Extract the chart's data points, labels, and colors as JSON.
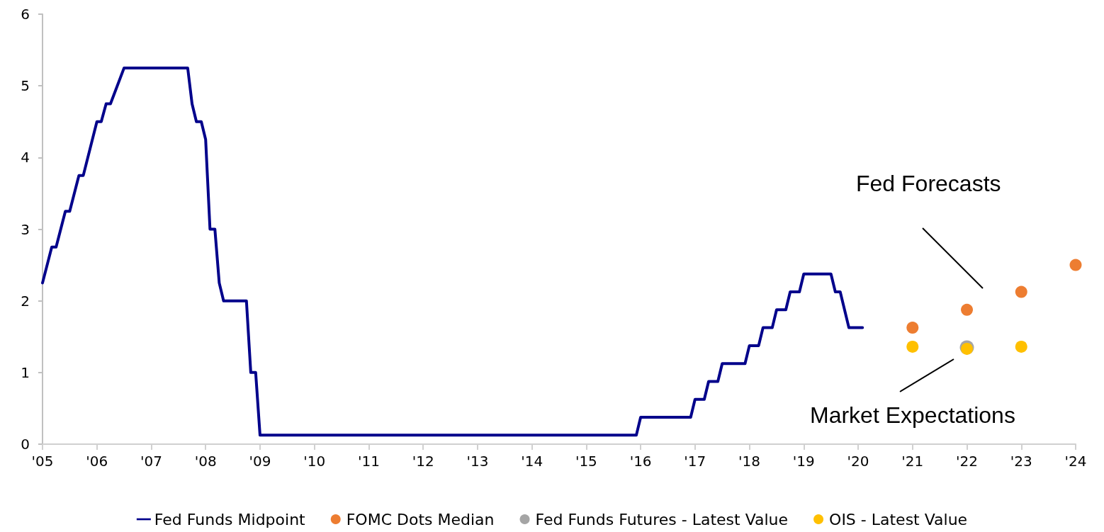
{
  "chart_data": {
    "type": "line",
    "xlim": [
      2005,
      2024
    ],
    "xticks": [
      {
        "value": 2005,
        "label": "'05"
      },
      {
        "value": 2006,
        "label": "'06"
      },
      {
        "value": 2007,
        "label": "'07"
      },
      {
        "value": 2008,
        "label": "'08"
      },
      {
        "value": 2009,
        "label": "'09"
      },
      {
        "value": 2010,
        "label": "'10"
      },
      {
        "value": 2011,
        "label": "'11"
      },
      {
        "value": 2012,
        "label": "'12"
      },
      {
        "value": 2013,
        "label": "'13"
      },
      {
        "value": 2014,
        "label": "'14"
      },
      {
        "value": 2015,
        "label": "'15"
      },
      {
        "value": 2016,
        "label": "'16"
      },
      {
        "value": 2017,
        "label": "'17"
      },
      {
        "value": 2018,
        "label": "'18"
      },
      {
        "value": 2019,
        "label": "'19"
      },
      {
        "value": 2020,
        "label": "'20"
      },
      {
        "value": 2021,
        "label": "'21"
      },
      {
        "value": 2022,
        "label": "'22"
      },
      {
        "value": 2023,
        "label": "'23"
      },
      {
        "value": 2024,
        "label": "'24"
      }
    ],
    "ylim": [
      0,
      6
    ],
    "yticks": [
      0,
      1,
      2,
      3,
      4,
      5,
      6
    ],
    "grid": false,
    "legend": "bottom",
    "annotations": [
      "Fed Forecasts",
      "Market Expectations"
    ],
    "series": [
      {
        "name": "Fed Funds Midpoint",
        "color": "#00008b",
        "marker": "none",
        "line_style": "solid",
        "x": [
          2005.0,
          2005.17,
          2005.25,
          2005.42,
          2005.5,
          2005.67,
          2005.75,
          2006.0,
          2006.08,
          2006.17,
          2006.25,
          2006.5,
          2007.67,
          2007.75,
          2007.83,
          2007.92,
          2008.0,
          2008.08,
          2008.17,
          2008.25,
          2008.33,
          2008.75,
          2008.83,
          2008.92,
          2009.0,
          2015.92,
          2016.0,
          2016.92,
          2017.0,
          2017.17,
          2017.25,
          2017.42,
          2017.5,
          2017.92,
          2018.0,
          2018.17,
          2018.25,
          2018.42,
          2018.5,
          2018.67,
          2018.75,
          2018.92,
          2019.0,
          2019.5,
          2019.58,
          2019.67,
          2019.83,
          2020.08
        ],
        "values": [
          2.25,
          2.75,
          2.75,
          3.25,
          3.25,
          3.75,
          3.75,
          4.5,
          4.5,
          4.75,
          4.75,
          5.25,
          5.25,
          4.75,
          4.5,
          4.5,
          4.25,
          3.0,
          3.0,
          2.25,
          2.0,
          2.0,
          1.0,
          1.0,
          0.125,
          0.125,
          0.375,
          0.375,
          0.625,
          0.625,
          0.875,
          0.875,
          1.125,
          1.125,
          1.375,
          1.375,
          1.625,
          1.625,
          1.875,
          1.875,
          2.125,
          2.125,
          2.375,
          2.375,
          2.125,
          2.125,
          1.625,
          1.625
        ]
      },
      {
        "name": "FOMC Dots Median",
        "type": "scatter",
        "color": "#ed7d31",
        "marker": "circle",
        "x": [
          2021,
          2022,
          2023,
          2024
        ],
        "values": [
          1.625,
          1.875,
          2.125,
          2.5
        ]
      },
      {
        "name": "Fed Funds Futures - Latest Value",
        "type": "scatter",
        "color": "#a5a5a5",
        "marker": "circle",
        "x": [
          2022
        ],
        "values": [
          1.35
        ]
      },
      {
        "name": "OIS - Latest Value",
        "type": "scatter",
        "color": "#ffc000",
        "marker": "circle",
        "x": [
          2021,
          2022,
          2023
        ],
        "values": [
          1.36,
          1.33,
          1.36
        ]
      }
    ]
  }
}
